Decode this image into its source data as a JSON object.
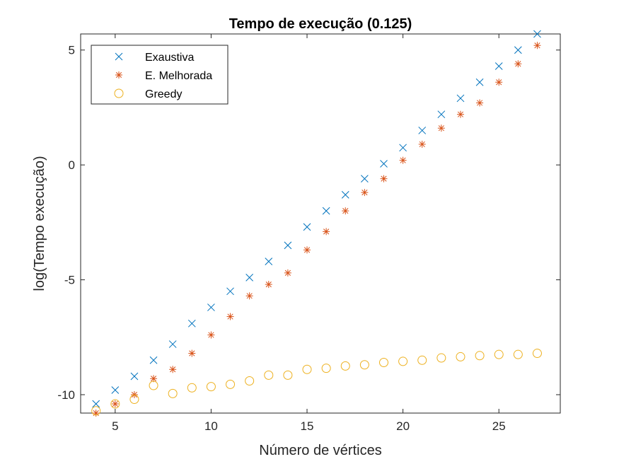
{
  "chart_data": {
    "type": "scatter",
    "title": "Tempo de execução (0.125)",
    "xlabel": "Número de vértices",
    "ylabel": "log(Tempo execução)",
    "xlim": [
      3.2,
      28.2
    ],
    "ylim": [
      -10.8,
      5.7
    ],
    "xticks": [
      5,
      10,
      15,
      20,
      25
    ],
    "yticks": [
      -10,
      -5,
      0,
      5
    ],
    "grid": false,
    "legend_position": "top-left",
    "series": [
      {
        "name": "Exaustiva",
        "marker": "x",
        "color": "#0072BD",
        "x": [
          4,
          5,
          6,
          7,
          8,
          9,
          10,
          11,
          12,
          13,
          14,
          15,
          16,
          17,
          18,
          19,
          20,
          21,
          22,
          23,
          24,
          25,
          26,
          27
        ],
        "y": [
          -10.4,
          -9.8,
          -9.2,
          -8.5,
          -7.8,
          -6.9,
          -6.2,
          -5.5,
          -4.9,
          -4.2,
          -3.5,
          -2.7,
          -2.0,
          -1.3,
          -0.6,
          0.05,
          0.75,
          1.5,
          2.2,
          2.9,
          3.6,
          4.3,
          5.0,
          5.7
        ]
      },
      {
        "name": "E. Melhorada",
        "marker": "asterisk",
        "color": "#D95319",
        "x": [
          4,
          5,
          6,
          7,
          8,
          9,
          10,
          11,
          12,
          13,
          14,
          15,
          16,
          17,
          18,
          19,
          20,
          21,
          22,
          23,
          24,
          25,
          26,
          27
        ],
        "y": [
          -10.8,
          -10.4,
          -10.0,
          -9.3,
          -8.9,
          -8.2,
          -7.4,
          -6.6,
          -5.7,
          -5.2,
          -4.7,
          -3.7,
          -2.9,
          -2.0,
          -1.2,
          -0.6,
          0.2,
          0.9,
          1.6,
          2.2,
          2.7,
          3.6,
          4.4,
          5.2
        ]
      },
      {
        "name": "Greedy",
        "marker": "circle",
        "color": "#EDB120",
        "x": [
          4,
          5,
          6,
          7,
          8,
          9,
          10,
          11,
          12,
          13,
          14,
          15,
          16,
          17,
          18,
          19,
          20,
          21,
          22,
          23,
          24,
          25,
          26,
          27
        ],
        "y": [
          -10.7,
          -10.4,
          -10.2,
          -9.6,
          -9.95,
          -9.7,
          -9.65,
          -9.55,
          -9.4,
          -9.15,
          -9.15,
          -8.9,
          -8.85,
          -8.75,
          -8.7,
          -8.6,
          -8.55,
          -8.5,
          -8.4,
          -8.35,
          -8.3,
          -8.25,
          -8.25,
          -8.2
        ]
      }
    ]
  }
}
